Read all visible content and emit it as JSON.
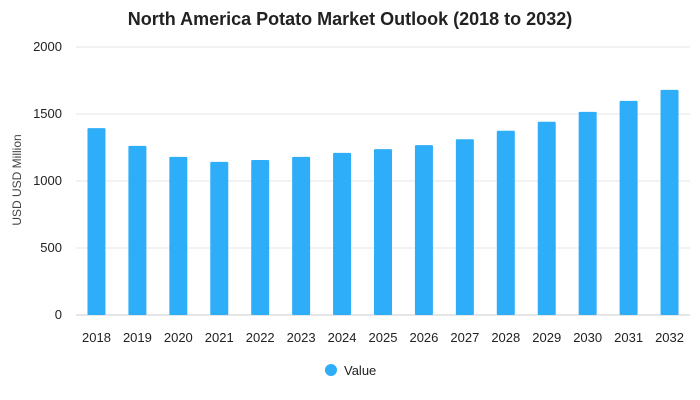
{
  "chart_data": {
    "type": "bar",
    "title": "North America Potato Market Outlook (2018 to 2032)",
    "ylabel": "USD USD Million",
    "xlabel": "",
    "categories": [
      "2018",
      "2019",
      "2020",
      "2021",
      "2022",
      "2023",
      "2024",
      "2025",
      "2026",
      "2027",
      "2028",
      "2029",
      "2030",
      "2031",
      "2032"
    ],
    "series": [
      {
        "name": "Value",
        "values": [
          1395,
          1262,
          1180,
          1143,
          1157,
          1180,
          1210,
          1238,
          1268,
          1312,
          1375,
          1442,
          1516,
          1598,
          1680
        ]
      }
    ],
    "ylim": [
      0,
      2000
    ],
    "yticks": [
      0,
      500,
      1000,
      1500,
      2000
    ],
    "grid": true,
    "legend": "bottom",
    "colors": {
      "bar": "#2EAEF8",
      "grid": "#e6e6e6"
    }
  }
}
